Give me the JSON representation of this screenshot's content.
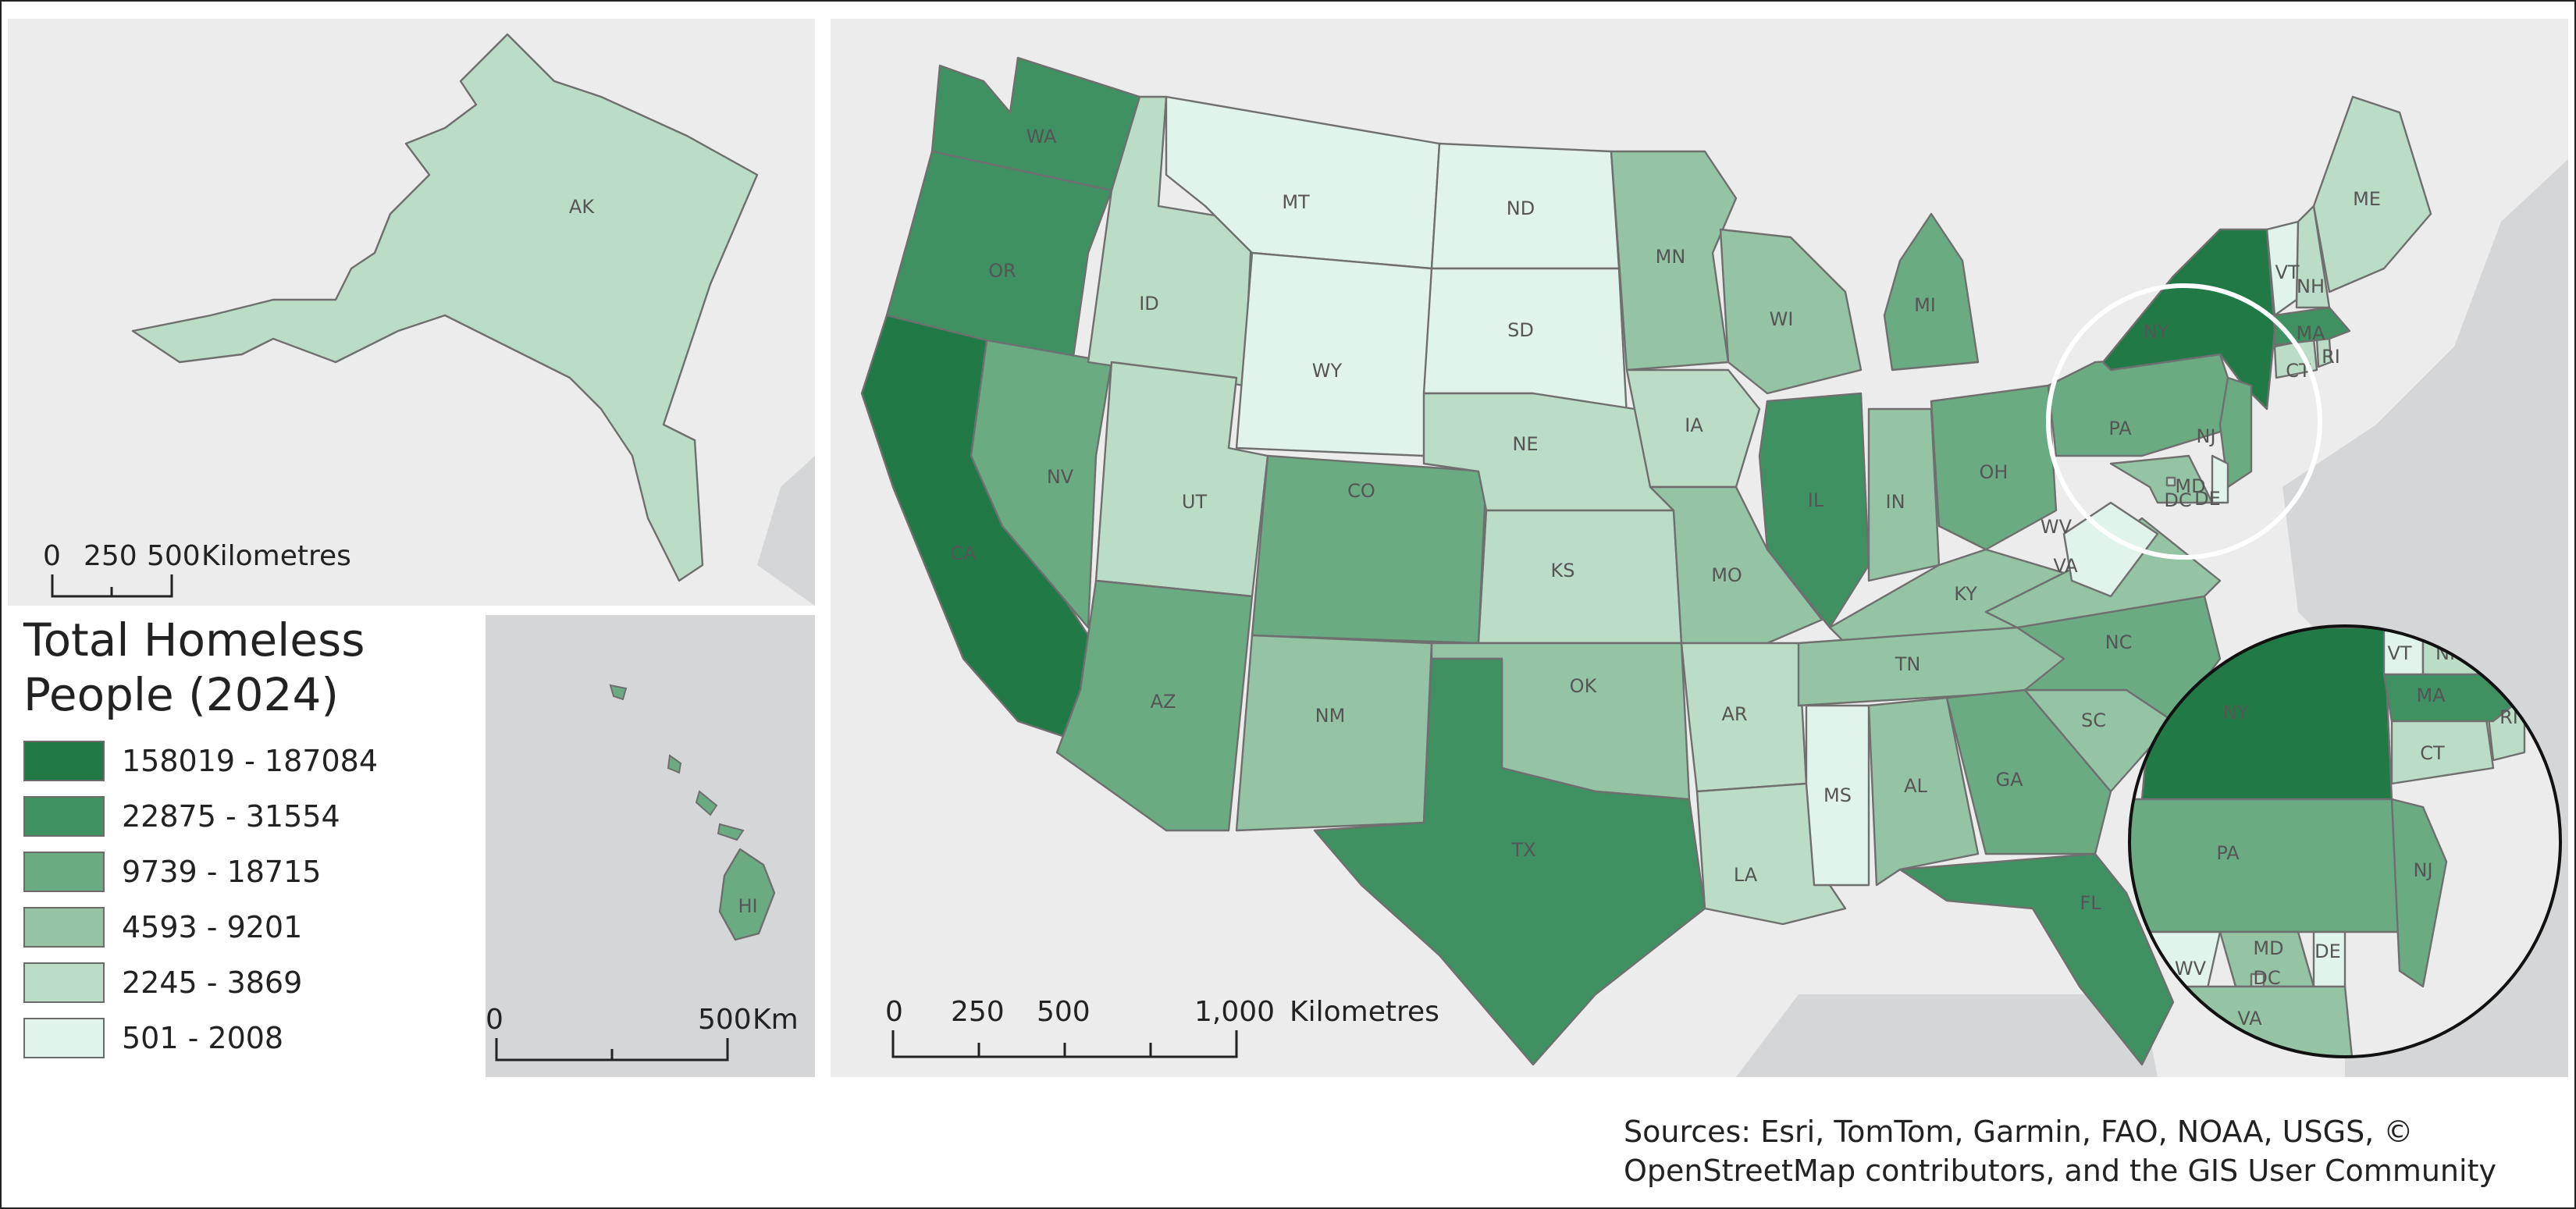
{
  "legend": {
    "title_line1": "Total Homeless",
    "title_line2": "People (2024)",
    "classes": [
      {
        "label": "158019 - 187084",
        "color": "#217a45"
      },
      {
        "label": "22875 - 31554",
        "color": "#3f9162"
      },
      {
        "label": "9739 - 18715",
        "color": "#6aab82"
      },
      {
        "label": "4593 - 9201",
        "color": "#94c4a3"
      },
      {
        "label": "2245 - 3869",
        "color": "#bbdcc6"
      },
      {
        "label": "501 - 2008",
        "color": "#e1f4ec"
      }
    ]
  },
  "scales": {
    "alaska": {
      "ticks": [
        "0",
        "250",
        "500"
      ],
      "unit": "Kilometres"
    },
    "hawaii": {
      "ticks": [
        "0",
        "500"
      ],
      "unit": "Km"
    },
    "main": {
      "ticks": [
        "0",
        "250",
        "500",
        "1,000"
      ],
      "unit": "Kilometres"
    }
  },
  "states": {
    "WA": 1,
    "OR": 1,
    "CA": 0,
    "NV": 2,
    "ID": 4,
    "MT": 5,
    "WY": 5,
    "UT": 4,
    "AZ": 2,
    "CO": 2,
    "NM": 3,
    "ND": 5,
    "SD": 5,
    "NE": 4,
    "KS": 4,
    "OK": 3,
    "TX": 1,
    "MN": 3,
    "IA": 4,
    "MO": 3,
    "AR": 4,
    "LA": 4,
    "WI": 3,
    "IL": 1,
    "MI": 2,
    "IN": 3,
    "OH": 2,
    "KY": 3,
    "TN": 3,
    "MS": 5,
    "AL": 3,
    "GA": 2,
    "FL": 1,
    "SC": 3,
    "NC": 2,
    "VA": 3,
    "WV": 5,
    "PA": 2,
    "NY": 0,
    "NJ": 2,
    "MD": 3,
    "DE": 5,
    "DC": 4,
    "CT": 4,
    "RI": 4,
    "MA": 1,
    "VT": 5,
    "NH": 4,
    "ME": 4,
    "AK": 4,
    "HI": 2
  },
  "sources": {
    "line1": "Sources: Esri, TomTom, Garmin, FAO, NOAA, USGS, ©",
    "line2": "OpenStreetMap contributors, and the GIS User Community"
  }
}
